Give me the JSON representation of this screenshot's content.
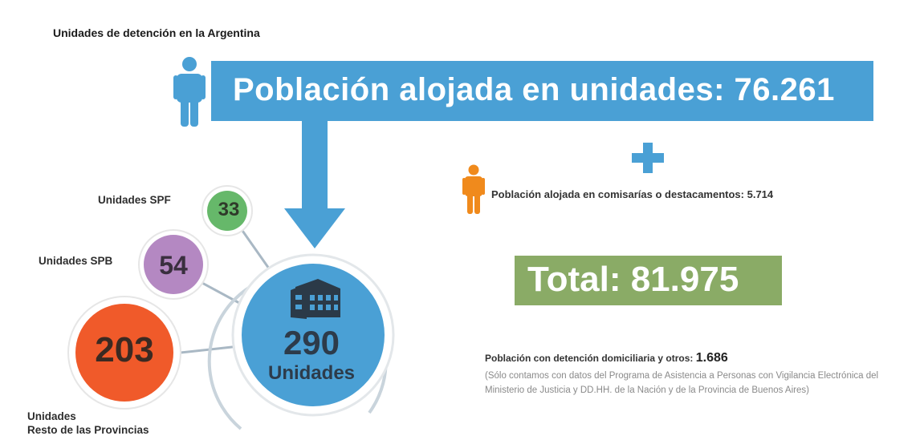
{
  "title": "Unidades de detención en la Argentina",
  "banner": {
    "text": "Población alojada en unidades: 76.261"
  },
  "comisarias": {
    "text": "Población alojada en comisarías o destacamentos: 5.714"
  },
  "total": {
    "text": "Total: 81.975"
  },
  "domiciliaria": {
    "label": "Población con detención domiciliaria y otros: ",
    "value": "1.686",
    "note": "(Sólo contamos con datos del Programa de Asistencia a Personas con Vigilancia Electrónica del Ministerio de Justicia y DD.HH. de la Nación y de la Provincia de Buenos Aires)"
  },
  "bubbles": {
    "spf": {
      "label": "Unidades SPF",
      "value": "33"
    },
    "spb": {
      "label": "Unidades SPB",
      "value": "54"
    },
    "rest": {
      "label_line1": "Unidades",
      "label_line2": "Resto de las Provincias",
      "value": "203"
    },
    "total": {
      "value": "290",
      "unit": "Unidades"
    }
  },
  "colors": {
    "blue": "#4aa0d5",
    "orange": "#f08a1c",
    "green": "#8aab66",
    "bubble_spf": "#66b86a",
    "bubble_spb": "#b488c2",
    "bubble_rest": "#f05a2a",
    "connector": "#a9b8c4"
  },
  "icons": [
    "person-icon-blue",
    "person-icon-orange",
    "plus-icon",
    "building-icon",
    "down-arrow-icon"
  ]
}
